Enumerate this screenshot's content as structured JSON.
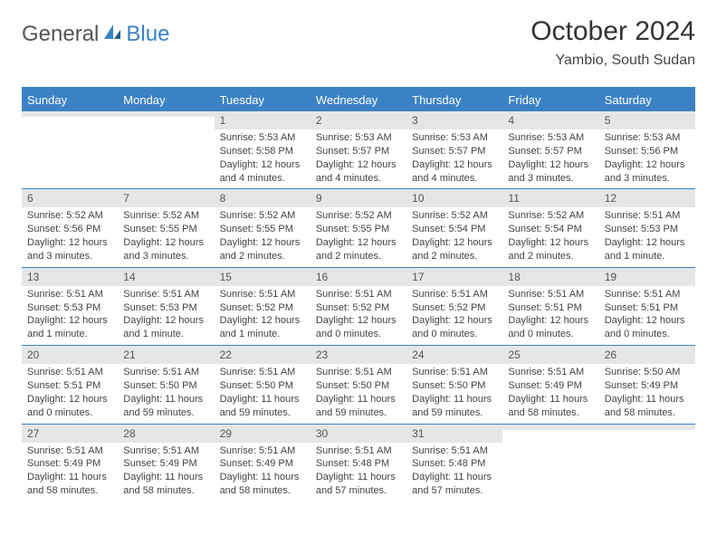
{
  "logo": {
    "general": "General",
    "blue": "Blue"
  },
  "title": "October 2024",
  "location": "Yambio, South Sudan",
  "colors": {
    "accent": "#3b82c4",
    "header_text": "#ffffff",
    "daynum_bg": "#e6e6e6",
    "body_text": "#444444",
    "page_bg": "#ffffff"
  },
  "weekdays": [
    "Sunday",
    "Monday",
    "Tuesday",
    "Wednesday",
    "Thursday",
    "Friday",
    "Saturday"
  ],
  "weeks": [
    [
      null,
      null,
      {
        "n": "1",
        "sr": "Sunrise: 5:53 AM",
        "ss": "Sunset: 5:58 PM",
        "dl": "Daylight: 12 hours and 4 minutes."
      },
      {
        "n": "2",
        "sr": "Sunrise: 5:53 AM",
        "ss": "Sunset: 5:57 PM",
        "dl": "Daylight: 12 hours and 4 minutes."
      },
      {
        "n": "3",
        "sr": "Sunrise: 5:53 AM",
        "ss": "Sunset: 5:57 PM",
        "dl": "Daylight: 12 hours and 4 minutes."
      },
      {
        "n": "4",
        "sr": "Sunrise: 5:53 AM",
        "ss": "Sunset: 5:57 PM",
        "dl": "Daylight: 12 hours and 3 minutes."
      },
      {
        "n": "5",
        "sr": "Sunrise: 5:53 AM",
        "ss": "Sunset: 5:56 PM",
        "dl": "Daylight: 12 hours and 3 minutes."
      }
    ],
    [
      {
        "n": "6",
        "sr": "Sunrise: 5:52 AM",
        "ss": "Sunset: 5:56 PM",
        "dl": "Daylight: 12 hours and 3 minutes."
      },
      {
        "n": "7",
        "sr": "Sunrise: 5:52 AM",
        "ss": "Sunset: 5:55 PM",
        "dl": "Daylight: 12 hours and 3 minutes."
      },
      {
        "n": "8",
        "sr": "Sunrise: 5:52 AM",
        "ss": "Sunset: 5:55 PM",
        "dl": "Daylight: 12 hours and 2 minutes."
      },
      {
        "n": "9",
        "sr": "Sunrise: 5:52 AM",
        "ss": "Sunset: 5:55 PM",
        "dl": "Daylight: 12 hours and 2 minutes."
      },
      {
        "n": "10",
        "sr": "Sunrise: 5:52 AM",
        "ss": "Sunset: 5:54 PM",
        "dl": "Daylight: 12 hours and 2 minutes."
      },
      {
        "n": "11",
        "sr": "Sunrise: 5:52 AM",
        "ss": "Sunset: 5:54 PM",
        "dl": "Daylight: 12 hours and 2 minutes."
      },
      {
        "n": "12",
        "sr": "Sunrise: 5:51 AM",
        "ss": "Sunset: 5:53 PM",
        "dl": "Daylight: 12 hours and 1 minute."
      }
    ],
    [
      {
        "n": "13",
        "sr": "Sunrise: 5:51 AM",
        "ss": "Sunset: 5:53 PM",
        "dl": "Daylight: 12 hours and 1 minute."
      },
      {
        "n": "14",
        "sr": "Sunrise: 5:51 AM",
        "ss": "Sunset: 5:53 PM",
        "dl": "Daylight: 12 hours and 1 minute."
      },
      {
        "n": "15",
        "sr": "Sunrise: 5:51 AM",
        "ss": "Sunset: 5:52 PM",
        "dl": "Daylight: 12 hours and 1 minute."
      },
      {
        "n": "16",
        "sr": "Sunrise: 5:51 AM",
        "ss": "Sunset: 5:52 PM",
        "dl": "Daylight: 12 hours and 0 minutes."
      },
      {
        "n": "17",
        "sr": "Sunrise: 5:51 AM",
        "ss": "Sunset: 5:52 PM",
        "dl": "Daylight: 12 hours and 0 minutes."
      },
      {
        "n": "18",
        "sr": "Sunrise: 5:51 AM",
        "ss": "Sunset: 5:51 PM",
        "dl": "Daylight: 12 hours and 0 minutes."
      },
      {
        "n": "19",
        "sr": "Sunrise: 5:51 AM",
        "ss": "Sunset: 5:51 PM",
        "dl": "Daylight: 12 hours and 0 minutes."
      }
    ],
    [
      {
        "n": "20",
        "sr": "Sunrise: 5:51 AM",
        "ss": "Sunset: 5:51 PM",
        "dl": "Daylight: 12 hours and 0 minutes."
      },
      {
        "n": "21",
        "sr": "Sunrise: 5:51 AM",
        "ss": "Sunset: 5:50 PM",
        "dl": "Daylight: 11 hours and 59 minutes."
      },
      {
        "n": "22",
        "sr": "Sunrise: 5:51 AM",
        "ss": "Sunset: 5:50 PM",
        "dl": "Daylight: 11 hours and 59 minutes."
      },
      {
        "n": "23",
        "sr": "Sunrise: 5:51 AM",
        "ss": "Sunset: 5:50 PM",
        "dl": "Daylight: 11 hours and 59 minutes."
      },
      {
        "n": "24",
        "sr": "Sunrise: 5:51 AM",
        "ss": "Sunset: 5:50 PM",
        "dl": "Daylight: 11 hours and 59 minutes."
      },
      {
        "n": "25",
        "sr": "Sunrise: 5:51 AM",
        "ss": "Sunset: 5:49 PM",
        "dl": "Daylight: 11 hours and 58 minutes."
      },
      {
        "n": "26",
        "sr": "Sunrise: 5:50 AM",
        "ss": "Sunset: 5:49 PM",
        "dl": "Daylight: 11 hours and 58 minutes."
      }
    ],
    [
      {
        "n": "27",
        "sr": "Sunrise: 5:51 AM",
        "ss": "Sunset: 5:49 PM",
        "dl": "Daylight: 11 hours and 58 minutes."
      },
      {
        "n": "28",
        "sr": "Sunrise: 5:51 AM",
        "ss": "Sunset: 5:49 PM",
        "dl": "Daylight: 11 hours and 58 minutes."
      },
      {
        "n": "29",
        "sr": "Sunrise: 5:51 AM",
        "ss": "Sunset: 5:49 PM",
        "dl": "Daylight: 11 hours and 58 minutes."
      },
      {
        "n": "30",
        "sr": "Sunrise: 5:51 AM",
        "ss": "Sunset: 5:48 PM",
        "dl": "Daylight: 11 hours and 57 minutes."
      },
      {
        "n": "31",
        "sr": "Sunrise: 5:51 AM",
        "ss": "Sunset: 5:48 PM",
        "dl": "Daylight: 11 hours and 57 minutes."
      },
      null,
      null
    ]
  ]
}
